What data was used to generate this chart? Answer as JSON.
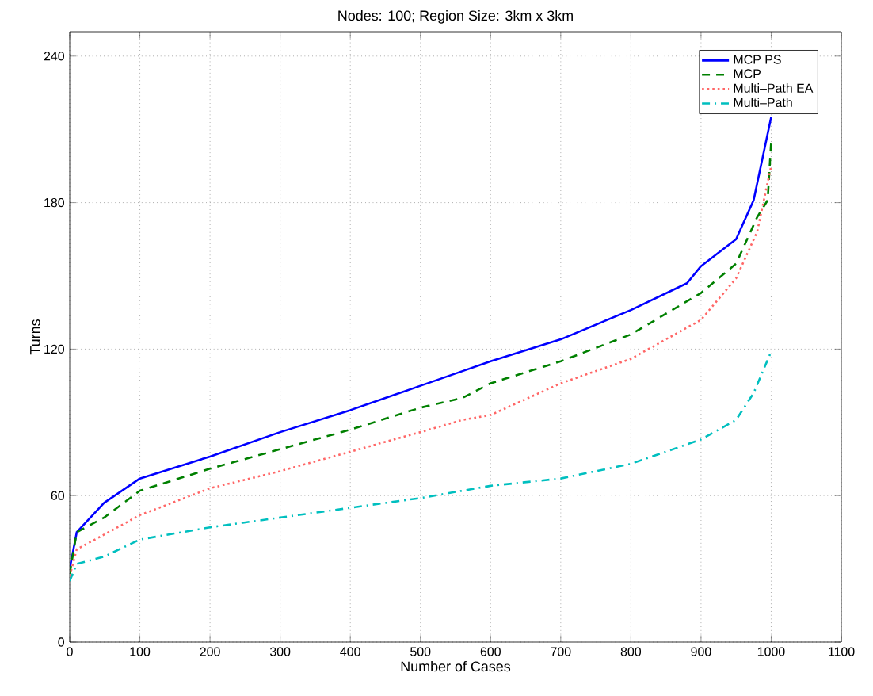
{
  "chart_data": {
    "type": "line",
    "title": "Nodes: 100; Region Size: 3km x 3km",
    "xlabel": "Number of Cases",
    "ylabel": "Turns",
    "xlim": [
      0,
      1100
    ],
    "xticks": [
      0,
      100,
      200,
      300,
      400,
      500,
      600,
      700,
      800,
      900,
      1000,
      1100
    ],
    "ylim": [
      0,
      250
    ],
    "yticks": [
      0,
      60,
      120,
      180,
      240
    ],
    "grid": true,
    "legend": "top right",
    "series": [
      {
        "name": "MCP PS",
        "color": "#0000ff",
        "line_style": "solid",
        "x": [
          0,
          10,
          49,
          100,
          200,
          300,
          400,
          500,
          560,
          600,
          700,
          800,
          880,
          900,
          950,
          975,
          1000
        ],
        "values": [
          30,
          45,
          57,
          67,
          76,
          86,
          95,
          105,
          111,
          115,
          124,
          136,
          147,
          154,
          165,
          181,
          215
        ]
      },
      {
        "name": "MCP",
        "color": "#008000",
        "line_style": "dashed",
        "x": [
          0,
          10,
          49,
          100,
          200,
          300,
          400,
          500,
          560,
          600,
          700,
          800,
          900,
          950,
          980,
          995,
          1000
        ],
        "values": [
          28,
          45,
          51,
          62,
          71,
          79,
          87,
          96,
          100,
          106,
          115,
          126,
          143,
          155,
          174,
          181,
          205
        ]
      },
      {
        "name": "Multi–Path EA",
        "color": "#ff6666",
        "line_style": "dotted",
        "x": [
          0,
          10,
          49,
          100,
          200,
          300,
          400,
          500,
          560,
          600,
          700,
          800,
          900,
          950,
          980,
          1000
        ],
        "values": [
          27,
          38,
          44,
          52,
          63,
          70,
          78,
          86,
          91,
          93,
          106,
          116,
          132,
          149,
          168,
          195
        ]
      },
      {
        "name": "Multi–Path",
        "color": "#00bfbf",
        "line_style": "dashdot",
        "x": [
          0,
          10,
          49,
          100,
          200,
          300,
          400,
          500,
          560,
          600,
          700,
          800,
          900,
          950,
          975,
          1000
        ],
        "values": [
          25,
          32,
          35,
          42,
          47,
          51,
          55,
          59,
          62,
          64,
          67,
          73,
          83,
          91,
          102,
          119
        ]
      }
    ]
  }
}
